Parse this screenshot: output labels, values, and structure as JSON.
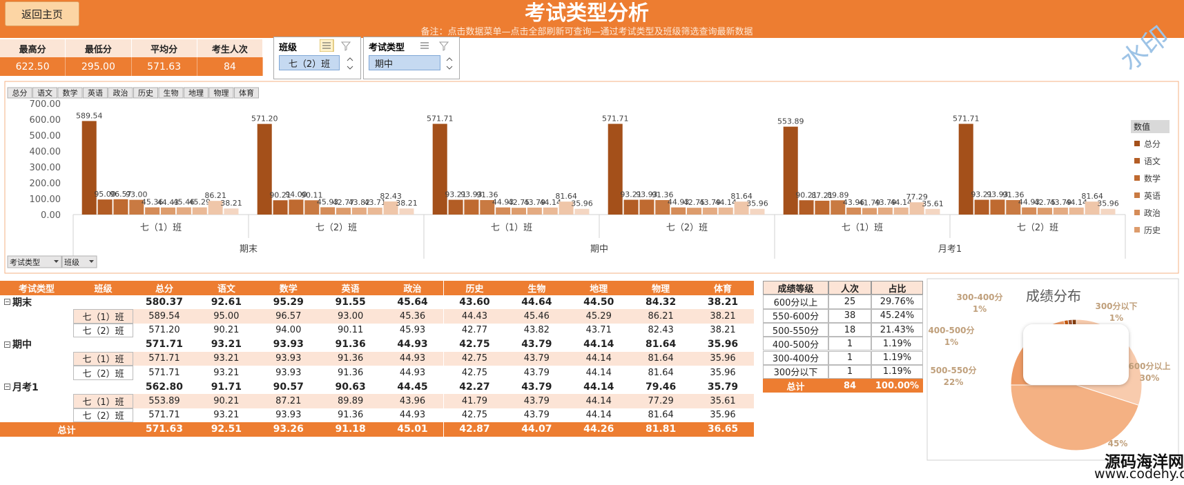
{
  "header": {
    "button": "返回主页",
    "title": "考试类型分析",
    "note": "备注：点击数据菜单—点击全部刷新可查询—通过考试类型及班级筛选查询最新数据"
  },
  "stats": {
    "labels": [
      "最高分",
      "最低分",
      "平均分",
      "考生人次"
    ],
    "values": [
      "622.50",
      "295.00",
      "571.63",
      "84"
    ]
  },
  "slicers": [
    {
      "title": "班级",
      "selected": "七（2）班"
    },
    {
      "title": "考试类型",
      "selected": "期中"
    }
  ],
  "watermark": "水印",
  "chart_filters": [
    "考试类型",
    "班级"
  ],
  "chart_data": [
    {
      "type": "bar",
      "legend_title": "数值",
      "groups": [
        "期末",
        "期中",
        "月考1"
      ],
      "categories": [
        "七（1）班",
        "七（2）班",
        "七（1）班",
        "七（2）班",
        "七（1）班",
        "七（2）班"
      ],
      "ylim": [
        0,
        700
      ],
      "yticks": [
        {
          "value": 0,
          "label": "0.00"
        },
        {
          "value": 100,
          "label": "100.00"
        },
        {
          "value": 200,
          "label": "200.00"
        },
        {
          "value": 300,
          "label": "300.00"
        },
        {
          "value": 400,
          "label": "400.00"
        },
        {
          "value": 500,
          "label": "500.00"
        },
        {
          "value": 600,
          "label": "600.00"
        },
        {
          "value": 700,
          "label": "700.00"
        }
      ],
      "grid": false,
      "series": [
        {
          "name": "总分",
          "color": "#a4501a",
          "values": [
            589.54,
            571.2,
            571.71,
            571.71,
            553.89,
            571.71
          ],
          "value_labels": [
            "589.54",
            "571.20",
            "571.71",
            "571.71",
            "553.89",
            "571.71"
          ]
        },
        {
          "name": "语文",
          "color": "#b35d25",
          "values": [
            95,
            90.21,
            93.21,
            93.21,
            90.21,
            93.21
          ],
          "value_labels": [
            "95.00",
            "90.21",
            "93.21",
            "93.21",
            "90.21",
            "93.21"
          ]
        },
        {
          "name": "数学",
          "color": "#bf6a30",
          "values": [
            96.57,
            94,
            93.93,
            93.93,
            87.21,
            93.93
          ],
          "value_labels": [
            "96.57",
            "94.00",
            "93.93",
            "93.93",
            "87.21",
            "93.93"
          ]
        },
        {
          "name": "英语",
          "color": "#c97a42",
          "values": [
            93,
            90.11,
            91.36,
            91.36,
            89.89,
            91.36
          ],
          "value_labels": [
            "93.00",
            "90.11",
            "91.36",
            "91.36",
            "89.89",
            "91.36"
          ]
        },
        {
          "name": "政治",
          "color": "#d58c58",
          "values": [
            45.36,
            45.93,
            44.93,
            44.93,
            43.96,
            44.93
          ],
          "value_labels": [
            "45.36",
            "45.93",
            "44.93",
            "44.93",
            "43.96",
            "44.93"
          ]
        },
        {
          "name": "历史",
          "color": "#dd9c6c",
          "values": [
            44.43,
            42.77,
            42.75,
            42.75,
            41.79,
            42.75
          ],
          "value_labels": [
            "44.43",
            "42.77",
            "42.75",
            "42.75",
            "41.79",
            "42.75"
          ]
        },
        {
          "name": "生物",
          "color": "#e4ab82",
          "values": [
            45.46,
            43.82,
            43.79,
            43.79,
            43.79,
            43.79
          ],
          "value_labels": [
            "45.46",
            "43.82",
            "43.79",
            "43.79",
            "43.79",
            "43.79"
          ]
        },
        {
          "name": "地理",
          "color": "#eab996",
          "values": [
            45.29,
            43.71,
            44.14,
            44.14,
            44.14,
            44.14
          ],
          "value_labels": [
            "45.29",
            "43.71",
            "44.14",
            "44.14",
            "44.14",
            "44.14"
          ]
        },
        {
          "name": "物理",
          "color": "#efc6a9",
          "values": [
            86.21,
            82.43,
            81.64,
            81.64,
            77.29,
            81.64
          ],
          "value_labels": [
            "86.21",
            "82.43",
            "81.64",
            "81.64",
            "77.29",
            "81.64"
          ]
        },
        {
          "name": "体育",
          "color": "#f4d6c2",
          "values": [
            38.21,
            38.21,
            35.96,
            35.96,
            35.61,
            35.96
          ],
          "value_labels": [
            "38.21",
            "38.21",
            "35.96",
            "35.96",
            "35.61",
            "35.96"
          ]
        }
      ]
    },
    {
      "type": "pie",
      "title": "成绩分布",
      "categories": [
        "600分以上",
        null,
        "500-550分",
        "400-500分",
        "300-400分",
        "300分以下"
      ],
      "values": [
        30,
        45,
        22,
        1,
        1,
        1
      ],
      "value_labels": [
        "30%",
        "45%",
        "22%",
        "1%",
        "1%",
        "1%"
      ],
      "colors": [
        "#f8cbad",
        "#f4b183",
        "#ee9b65",
        "#c55a11",
        "#a0522d",
        "#843c0c"
      ]
    }
  ],
  "table": {
    "columns": [
      "考试类型",
      "班级",
      "总分",
      "语文",
      "数学",
      "英语",
      "政治",
      "历史",
      "生物",
      "地理",
      "物理",
      "体育"
    ],
    "rows": [
      {
        "exam": "期末",
        "values": [
          "580.37",
          "92.61",
          "95.29",
          "91.55",
          "45.64",
          "43.60",
          "44.64",
          "44.50",
          "84.32",
          "38.21"
        ]
      },
      {
        "class": "七（1）班",
        "values": [
          "589.54",
          "95.00",
          "96.57",
          "93.00",
          "45.36",
          "44.43",
          "45.46",
          "45.29",
          "86.21",
          "38.21"
        ]
      },
      {
        "class": "七（2）班",
        "values": [
          "571.20",
          "90.21",
          "94.00",
          "90.11",
          "45.93",
          "42.77",
          "43.82",
          "43.71",
          "82.43",
          "38.21"
        ]
      },
      {
        "exam": "期中",
        "values": [
          "571.71",
          "93.21",
          "93.93",
          "91.36",
          "44.93",
          "42.75",
          "43.79",
          "44.14",
          "81.64",
          "35.96"
        ]
      },
      {
        "class": "七（1）班",
        "values": [
          "571.71",
          "93.21",
          "93.93",
          "91.36",
          "44.93",
          "42.75",
          "43.79",
          "44.14",
          "81.64",
          "35.96"
        ]
      },
      {
        "class": "七（2）班",
        "values": [
          "571.71",
          "93.21",
          "93.93",
          "91.36",
          "44.93",
          "42.75",
          "43.79",
          "44.14",
          "81.64",
          "35.96"
        ]
      },
      {
        "exam": "月考1",
        "values": [
          "562.80",
          "91.71",
          "90.57",
          "90.63",
          "44.45",
          "42.27",
          "43.79",
          "44.14",
          "79.46",
          "35.79"
        ]
      },
      {
        "class": "七（1）班",
        "values": [
          "553.89",
          "90.21",
          "87.21",
          "89.89",
          "43.96",
          "41.79",
          "43.79",
          "44.14",
          "77.29",
          "35.61"
        ]
      },
      {
        "class": "七（2）班",
        "values": [
          "571.71",
          "93.21",
          "93.93",
          "91.36",
          "44.93",
          "42.75",
          "43.79",
          "44.14",
          "81.64",
          "35.96"
        ]
      }
    ],
    "total": {
      "label": "总计",
      "values": [
        "571.63",
        "92.51",
        "93.26",
        "91.18",
        "45.01",
        "42.87",
        "44.07",
        "44.26",
        "81.81",
        "36.65"
      ]
    }
  },
  "grade_table": {
    "columns": [
      "成绩等级",
      "人次",
      "占比"
    ],
    "rows": [
      [
        "600分以上",
        "25",
        "29.76%"
      ],
      [
        "550-600分",
        "38",
        "45.24%"
      ],
      [
        "500-550分",
        "18",
        "21.43%"
      ],
      [
        "400-500分",
        "1",
        "1.19%"
      ],
      [
        "300-400分",
        "1",
        "1.19%"
      ],
      [
        "300分以下",
        "1",
        "1.19%"
      ]
    ],
    "total": [
      "总计",
      "84",
      "100.00%"
    ]
  },
  "footer": {
    "site": "源码海洋网",
    "url": "www.codehy.com"
  }
}
